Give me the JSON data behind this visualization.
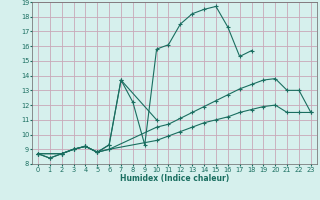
{
  "xlabel": "Humidex (Indice chaleur)",
  "xlim": [
    -0.5,
    23.5
  ],
  "ylim": [
    8,
    19
  ],
  "xticks": [
    0,
    1,
    2,
    3,
    4,
    5,
    6,
    7,
    8,
    9,
    10,
    11,
    12,
    13,
    14,
    15,
    16,
    17,
    18,
    19,
    20,
    21,
    22,
    23
  ],
  "yticks": [
    8,
    9,
    10,
    11,
    12,
    13,
    14,
    15,
    16,
    17,
    18,
    19
  ],
  "bg_color": "#d6f0ed",
  "grid_color": "#c8a8b8",
  "line_color": "#1a6e60",
  "line1_x": [
    0,
    1,
    2,
    3,
    4,
    5,
    6,
    7,
    8,
    9,
    10,
    11,
    12,
    13,
    14,
    15,
    16,
    17,
    18
  ],
  "line1_y": [
    8.7,
    8.4,
    8.7,
    9.0,
    9.2,
    8.8,
    9.3,
    13.7,
    12.2,
    9.3,
    15.8,
    16.1,
    17.5,
    18.2,
    18.5,
    18.7,
    17.3,
    15.3,
    15.7
  ],
  "line2_x": [
    0,
    1,
    2,
    3,
    4,
    5,
    6,
    7,
    10
  ],
  "line2_y": [
    8.7,
    8.4,
    8.7,
    9.0,
    9.2,
    8.8,
    9.3,
    13.7,
    11.0
  ],
  "line3_x": [
    0,
    2,
    3,
    4,
    5,
    6,
    10,
    11,
    12,
    13,
    14,
    15,
    16,
    17,
    18,
    19,
    20,
    21,
    22,
    23
  ],
  "line3_y": [
    8.7,
    8.7,
    9.0,
    9.2,
    8.8,
    9.0,
    10.5,
    10.7,
    11.1,
    11.5,
    11.9,
    12.3,
    12.7,
    13.1,
    13.4,
    13.7,
    13.8,
    13.0,
    13.0,
    11.5
  ],
  "line4_x": [
    0,
    2,
    3,
    4,
    5,
    6,
    10,
    11,
    12,
    13,
    14,
    15,
    16,
    17,
    18,
    19,
    20,
    21,
    22,
    23
  ],
  "line4_y": [
    8.7,
    8.7,
    9.0,
    9.2,
    8.8,
    9.0,
    9.6,
    9.9,
    10.2,
    10.5,
    10.8,
    11.0,
    11.2,
    11.5,
    11.7,
    11.9,
    12.0,
    11.5,
    11.5,
    11.5
  ]
}
